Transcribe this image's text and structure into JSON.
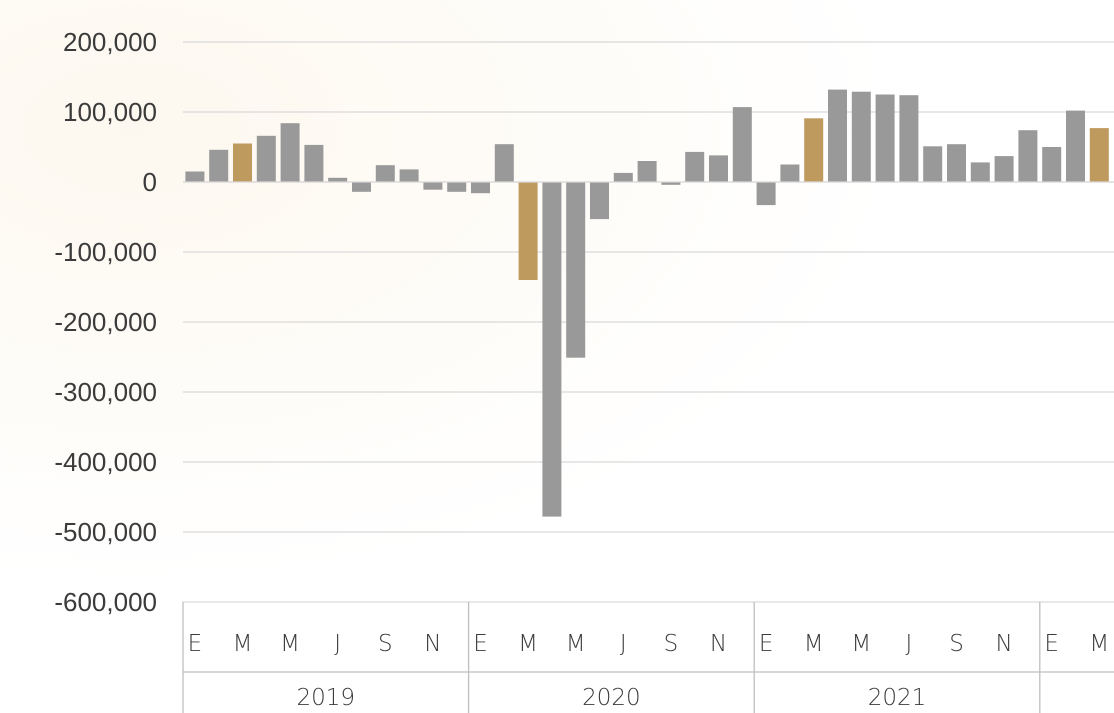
{
  "chart_data": {
    "type": "bar",
    "title": "",
    "xlabel": "",
    "ylabel": "",
    "ylim": [
      -600000,
      200000
    ],
    "y_ticks": [
      200000,
      100000,
      0,
      -100000,
      -200000,
      -300000,
      -400000,
      -500000,
      -600000
    ],
    "y_tick_labels": [
      "200,000",
      "100,000",
      "0",
      "-100,000",
      "-200,000",
      "-300,000",
      "-400,000",
      "-500,000",
      "-600,000"
    ],
    "grid": true,
    "legend": "none",
    "colors": {
      "default": "#999999",
      "highlight": "#bf9a5f",
      "grid": "#d9d9d9",
      "axis": "#bfbfbf"
    },
    "categories": [
      "2019-01",
      "2019-02",
      "2019-03",
      "2019-04",
      "2019-05",
      "2019-06",
      "2019-07",
      "2019-08",
      "2019-09",
      "2019-10",
      "2019-11",
      "2019-12",
      "2020-01",
      "2020-02",
      "2020-03",
      "2020-04",
      "2020-05",
      "2020-06",
      "2020-07",
      "2020-08",
      "2020-09",
      "2020-10",
      "2020-11",
      "2020-12",
      "2021-01",
      "2021-02",
      "2021-03",
      "2021-04",
      "2021-05",
      "2021-06",
      "2021-07",
      "2021-08",
      "2021-09",
      "2021-10",
      "2021-11",
      "2021-12",
      "2022-01",
      "2022-02",
      "2022-03"
    ],
    "values": [
      15000,
      46000,
      55000,
      66000,
      84000,
      53000,
      6000,
      -14000,
      24000,
      18000,
      -11000,
      -14000,
      -16000,
      54000,
      -140000,
      -478000,
      -251000,
      -53000,
      13000,
      30000,
      -4000,
      43000,
      38000,
      107000,
      -33000,
      25000,
      91000,
      132000,
      129000,
      125000,
      124000,
      51000,
      54000,
      28000,
      37000,
      74000,
      50000,
      102000,
      77000
    ],
    "highlighted": [
      2,
      14,
      26,
      38
    ],
    "x_tick_labels": [
      "E",
      "M",
      "M",
      "J",
      "S",
      "N",
      "E",
      "M",
      "M",
      "J",
      "S",
      "N",
      "E",
      "M",
      "M",
      "J",
      "S",
      "N",
      "E",
      "M"
    ],
    "year_labels": [
      "2019",
      "2020",
      "2021"
    ]
  }
}
